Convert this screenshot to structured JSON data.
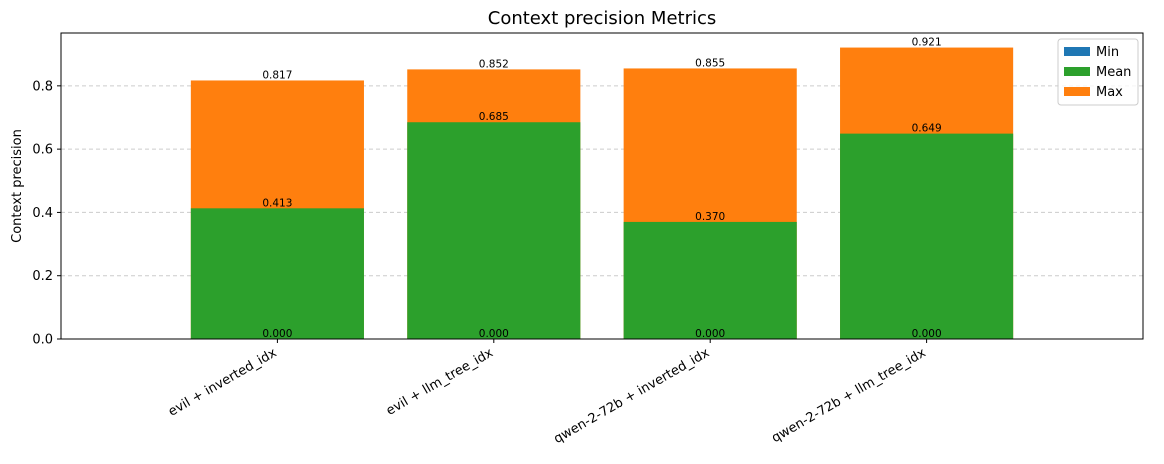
{
  "chart_data": {
    "type": "bar",
    "title": "Context precision Metrics",
    "xlabel": "",
    "ylabel": "Context precision",
    "categories": [
      "evil + inverted_idx",
      "evil + llm_tree_idx",
      "qwen-2-72b + inverted_idx",
      "qwen-2-72b + llm_tree_idx"
    ],
    "series": [
      {
        "name": "Min",
        "values": [
          0.0,
          0.0,
          0.0,
          0.0
        ],
        "color": "#1f77b4",
        "labels": [
          "0.000",
          "0.000",
          "0.000",
          "0.000"
        ]
      },
      {
        "name": "Mean",
        "values": [
          0.413,
          0.685,
          0.37,
          0.649
        ],
        "color": "#2ca02c",
        "labels": [
          "0.413",
          "0.685",
          "0.370",
          "0.649"
        ]
      },
      {
        "name": "Max",
        "values": [
          0.817,
          0.852,
          0.855,
          0.921
        ],
        "color": "#ff7f0e",
        "labels": [
          "0.817",
          "0.852",
          "0.855",
          "0.921"
        ]
      }
    ],
    "ylim": [
      0,
      0.967
    ],
    "yticks": [
      0.0,
      0.2,
      0.4,
      0.6,
      0.8
    ],
    "ytick_labels": [
      "0.0",
      "0.2",
      "0.4",
      "0.6",
      "0.8"
    ],
    "grid": true,
    "legend_position": "top-right"
  }
}
